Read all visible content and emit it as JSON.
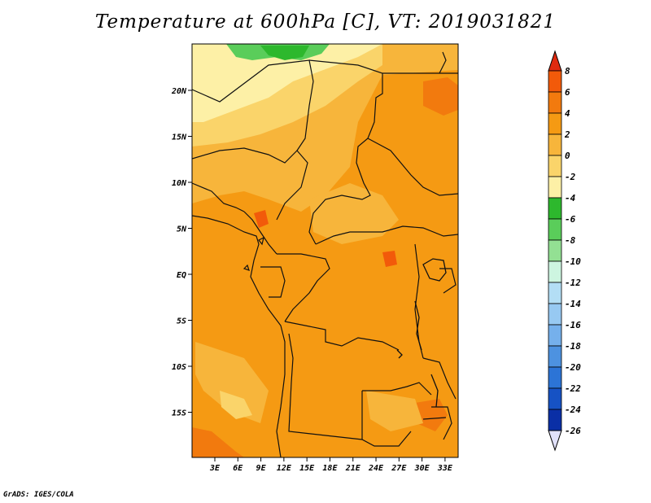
{
  "title": "Temperature at 600hPa [C], VT: 2019031821",
  "credit": "GrADS: IGES/COLA",
  "map": {
    "variable": "Temperature",
    "level": "600hPa",
    "units": "C",
    "valid_time": "2019031821",
    "lat_labels": [
      {
        "label": "20N",
        "lat": 20
      },
      {
        "label": "15N",
        "lat": 15
      },
      {
        "label": "10N",
        "lat": 10
      },
      {
        "label": "5N",
        "lat": 5
      },
      {
        "label": "EQ",
        "lat": 0
      },
      {
        "label": "5S",
        "lat": -5
      },
      {
        "label": "10S",
        "lat": -10
      },
      {
        "label": "15S",
        "lat": -15
      }
    ],
    "lon_labels": [
      {
        "label": "3E",
        "lon": 3
      },
      {
        "label": "6E",
        "lon": 6
      },
      {
        "label": "9E",
        "lon": 9
      },
      {
        "label": "12E",
        "lon": 12
      },
      {
        "label": "15E",
        "lon": 15
      },
      {
        "label": "18E",
        "lon": 18
      },
      {
        "label": "21E",
        "lon": 21
      },
      {
        "label": "24E",
        "lon": 24
      },
      {
        "label": "27E",
        "lon": 27
      },
      {
        "label": "30E",
        "lon": 30
      },
      {
        "label": "33E",
        "lon": 33
      }
    ]
  },
  "colorbar": {
    "levels": [
      "8",
      "6",
      "4",
      "2",
      "0",
      "-2",
      "-4",
      "-6",
      "-8",
      "-10",
      "-12",
      "-14",
      "-16",
      "-18",
      "-20",
      "-22",
      "-24",
      "-26"
    ],
    "colors_top_to_bottom": [
      "#e02a10",
      "#f25a0a",
      "#f27a0e",
      "#f59a13",
      "#f7b53b",
      "#fad46a",
      "#fdf0a6",
      "#2db82d",
      "#5acd5a",
      "#93e093",
      "#cdf5e0",
      "#b3def5",
      "#97c9f2",
      "#75b0ec",
      "#4d92e0",
      "#2c74d6",
      "#1652c4",
      "#0a2fa6",
      "#0a0a6e",
      "#e1e1fa"
    ],
    "top_arrow_color": "#e02a10",
    "bottom_arrow_color": "#e1e1fa"
  },
  "colors": {
    "field_base": "#f59a13",
    "warm_patch": "#f27a0e",
    "hot_patch": "#f25a0a",
    "cool_patch": "#f7b53b",
    "cooler_patch": "#fad46a",
    "coolest_patch": "#fdf0a6",
    "green_patch": "#5acd5a",
    "green_dark": "#2db82d"
  }
}
